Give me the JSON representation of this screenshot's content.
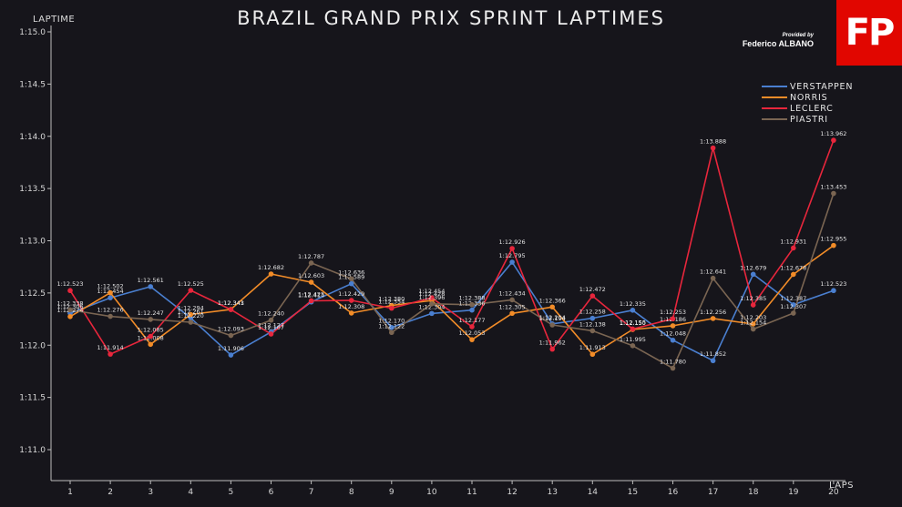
{
  "chart_data": {
    "type": "line",
    "title": "BRAZIL GRAND PRIX SPRINT LAPTIMES",
    "xlabel": "LAPS",
    "ylabel": "LAPTIME",
    "x": [
      1,
      2,
      3,
      4,
      5,
      6,
      7,
      8,
      9,
      10,
      11,
      12,
      13,
      14,
      15,
      16,
      17,
      18,
      19,
      20
    ],
    "y_ticks": [
      "1:11.0",
      "1:11.5",
      "1:12.0",
      "1:12.5",
      "1:13.0",
      "1:13.5",
      "1:14.0",
      "1:14.5",
      "1:15.0"
    ],
    "ylim": [
      70.95,
      75.02
    ],
    "grid": false,
    "legend_position": "top-right",
    "series": [
      {
        "name": "VERSTAPPEN",
        "color": "#4a7fd0",
        "values": [
          72.306,
          72.454,
          72.561,
          72.261,
          71.906,
          72.127,
          72.414,
          72.589,
          72.17,
          72.304,
          72.336,
          72.795,
          72.204,
          72.258,
          72.335,
          72.048,
          71.852,
          72.679,
          72.387,
          72.523
        ],
        "labels": [
          "1:12.306",
          "1:12.454",
          "1:12.561",
          "1:12.261",
          "1:11.906",
          "1:12.127",
          "1:12.414",
          "1:12.589",
          "1:12.170",
          "1:12.304",
          "1:12.336",
          "1:12.795",
          "1:12.204",
          "1:12.258",
          "1:12.335",
          "1:12.048",
          "1:11.852",
          "1:12.679",
          "1:12.387",
          "1:12.523"
        ]
      },
      {
        "name": "NORRIS",
        "color": "#f28c28",
        "values": [
          72.274,
          72.502,
          72.008,
          72.294,
          72.343,
          72.682,
          72.603,
          72.308,
          72.38,
          72.428,
          72.053,
          72.305,
          72.366,
          71.913,
          72.15,
          72.186,
          72.256,
          72.203,
          72.678,
          72.955
        ],
        "labels": [
          "1:12.274",
          "1:12.502",
          "1:12.008",
          "1:12.294",
          "1:12.343",
          "1:12.682",
          "1:12.603",
          "1:12.308",
          "1:12.380",
          "1:12.428",
          "1:12.053",
          "1:12.305",
          "1:12.366",
          "1:11.913",
          "1:12.150",
          "1:12.186",
          "1:12.256",
          "1:12.203",
          "1:12.678",
          "1:12.955"
        ]
      },
      {
        "name": "LECLERC",
        "color": "#e8263c",
        "values": [
          72.523,
          71.914,
          72.085,
          72.525,
          72.341,
          72.107,
          72.425,
          72.429,
          72.354,
          72.454,
          72.177,
          72.926,
          71.962,
          72.472,
          72.155,
          72.253,
          73.888,
          72.385,
          72.931,
          73.962
        ],
        "labels": [
          "1:12.523",
          "1:11.914",
          "1:12.085",
          "1:12.525",
          "1:12.341",
          "1:12.107",
          "1:12.425",
          "1:12.429",
          "1:12.354",
          "1:12.454",
          "1:12.177",
          "1:12.926",
          "1:11.962",
          "1:12.472",
          "1:12.155",
          "1:12.253",
          "1:13.888",
          "1:12.385",
          "1:12.931",
          "1:13.962"
        ]
      },
      {
        "name": "PIASTRI",
        "color": "#7a6552",
        "values": [
          72.338,
          72.276,
          72.247,
          72.22,
          72.093,
          72.24,
          72.787,
          72.636,
          72.122,
          72.396,
          72.388,
          72.434,
          72.194,
          72.138,
          71.995,
          71.78,
          72.641,
          72.154,
          72.307,
          73.453
        ],
        "labels": [
          "1:12.338",
          "1:12.276",
          "1:12.247",
          "1:12.220",
          "1:12.093",
          "1:12.240",
          "1:12.787",
          "1:12.636",
          "1:12.122",
          "1:12.396",
          "1:12.388",
          "1:12.434",
          "1:12.194",
          "1:12.138",
          "1:11.995",
          "1:11.780",
          "1:12.641",
          "1:12.154",
          "1:12.307",
          "1:13.453"
        ]
      }
    ]
  },
  "credit": {
    "provided": "Provided by",
    "name": "Federico ALBANO"
  },
  "logo": {
    "text": "FP",
    "color": "#e10600"
  },
  "colors": {
    "background": "#16151b",
    "axis": "#bdbdbd",
    "text": "#e6e6e6"
  }
}
